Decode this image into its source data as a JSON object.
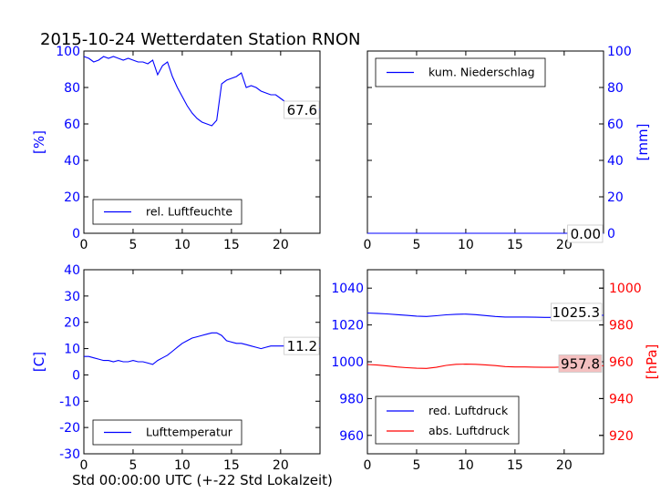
{
  "title": "2015-10-24 Wetterdaten Station RNON",
  "xlabel": "Std 00:00:00 UTC (+-22 Std Lokalzeit)",
  "colors": {
    "blue": "#0000ff",
    "red": "#ff0000",
    "axis": "#000000",
    "box_bg": "#ffffff",
    "badge_red": "#f4c0c0"
  },
  "chart_data": [
    {
      "id": "humidity",
      "type": "line",
      "xlim": [
        0,
        24
      ],
      "ylim": [
        0,
        100
      ],
      "xticks": [
        0,
        5,
        10,
        15,
        20
      ],
      "yticks": [
        0,
        20,
        40,
        60,
        80,
        100
      ],
      "ylabel": "[%]",
      "grid": false,
      "legend_position": "lower-center",
      "last_value_label": "67.6",
      "series": [
        {
          "name": "rel. Luftfeuchte",
          "color": "#0000ff",
          "x": [
            0,
            0.5,
            1,
            1.5,
            2,
            2.5,
            3,
            3.5,
            4,
            4.5,
            5,
            5.5,
            6,
            6.5,
            7,
            7.5,
            8,
            8.5,
            9,
            9.5,
            10,
            10.5,
            11,
            11.5,
            12,
            12.5,
            13,
            13.5,
            14,
            14.5,
            15,
            15.5,
            16,
            16.5,
            17,
            17.5,
            18,
            18.5,
            19,
            19.5,
            20,
            20.5,
            21,
            21.5,
            22,
            22.5,
            23,
            23.5,
            24
          ],
          "y": [
            97,
            96,
            94,
            95,
            97,
            96,
            97,
            96,
            95,
            96,
            95,
            94,
            94,
            93,
            95,
            87,
            92,
            94,
            86,
            80,
            75,
            70,
            66,
            63,
            61,
            60,
            59,
            62,
            82,
            84,
            85,
            86,
            88,
            80,
            81,
            80,
            78,
            77,
            76,
            76,
            74,
            72,
            70,
            69,
            68,
            68,
            67,
            67,
            68
          ]
        }
      ]
    },
    {
      "id": "precip",
      "type": "line",
      "xlim": [
        0,
        24
      ],
      "ylim": [
        0,
        100
      ],
      "xticks": [
        0,
        5,
        10,
        15,
        20
      ],
      "yticks": [
        0,
        20,
        40,
        60,
        80,
        100
      ],
      "ylabel": "[mm]",
      "y_axis_side": "right",
      "grid": false,
      "legend_position": "upper-left",
      "last_value_label": "0.00",
      "series": [
        {
          "name": "kum. Niederschlag",
          "color": "#0000ff",
          "x": [
            0,
            24
          ],
          "y": [
            0,
            0
          ]
        }
      ]
    },
    {
      "id": "temperature",
      "type": "line",
      "xlim": [
        0,
        24
      ],
      "ylim": [
        -30,
        40
      ],
      "xticks": [
        0,
        5,
        10,
        15,
        20
      ],
      "yticks": [
        -30,
        -20,
        -10,
        0,
        10,
        20,
        30,
        40
      ],
      "ylabel": "[C]",
      "grid": false,
      "legend_position": "lower-center",
      "last_value_label": "11.2",
      "series": [
        {
          "name": "Lufttemperatur",
          "color": "#0000ff",
          "x": [
            0,
            0.5,
            1,
            1.5,
            2,
            2.5,
            3,
            3.5,
            4,
            4.5,
            5,
            5.5,
            6,
            6.5,
            7,
            7.5,
            8,
            8.5,
            9,
            9.5,
            10,
            10.5,
            11,
            11.5,
            12,
            12.5,
            13,
            13.5,
            14,
            14.5,
            15,
            15.5,
            16,
            16.5,
            17,
            17.5,
            18,
            18.5,
            19,
            19.5,
            20,
            20.5,
            21,
            21.5,
            22,
            22.5,
            23,
            23.5,
            24
          ],
          "y": [
            7,
            7,
            6.5,
            6,
            5.5,
            5.5,
            5,
            5.5,
            5,
            5,
            5.5,
            5,
            5,
            4.5,
            4,
            5.5,
            6.5,
            7.5,
            9,
            10.5,
            12,
            13,
            14,
            14.5,
            15,
            15.5,
            16,
            16,
            15,
            13,
            12.5,
            12,
            12,
            11.5,
            11,
            10.5,
            10,
            10.5,
            11,
            11,
            11,
            11,
            11.2,
            11,
            11,
            11.2,
            11.2,
            11.2,
            11.2
          ]
        }
      ]
    },
    {
      "id": "pressure",
      "type": "line",
      "xlim": [
        0,
        24
      ],
      "ylim": [
        950,
        1050
      ],
      "xticks": [
        0,
        5,
        10,
        15,
        20
      ],
      "yticks": [
        960,
        980,
        1000,
        1020,
        1040
      ],
      "ylim_right": [
        910,
        1010
      ],
      "yticks_right": [
        920,
        940,
        960,
        980,
        1000
      ],
      "ylabel_right": "[hPa]",
      "grid": false,
      "legend_position": "lower-left",
      "value_labels": [
        "1025.3",
        "957.8"
      ],
      "series": [
        {
          "name": "red. Luftdruck",
          "color": "#0000ff",
          "axis": "left",
          "x": [
            0,
            1,
            2,
            3,
            4,
            5,
            6,
            7,
            8,
            9,
            10,
            11,
            12,
            13,
            14,
            15,
            16,
            17,
            18,
            19,
            20,
            21,
            22,
            23,
            24
          ],
          "y": [
            1026.5,
            1026.3,
            1026,
            1025.6,
            1025.2,
            1024.8,
            1024.6,
            1025,
            1025.5,
            1025.8,
            1025.9,
            1025.6,
            1025.1,
            1024.6,
            1024.3,
            1024.3,
            1024.3,
            1024.2,
            1024.1,
            1024.1,
            1024.3,
            1024.6,
            1024.9,
            1025.1,
            1025.3
          ]
        },
        {
          "name": "abs. Luftdruck",
          "color": "#ff0000",
          "axis": "right",
          "x": [
            0,
            1,
            2,
            3,
            4,
            5,
            6,
            7,
            8,
            9,
            10,
            11,
            12,
            13,
            14,
            15,
            16,
            17,
            18,
            19,
            20,
            21,
            22,
            23,
            24
          ],
          "y": [
            958.5,
            958.2,
            957.7,
            957.2,
            956.8,
            956.5,
            956.4,
            957,
            958,
            958.6,
            958.7,
            958.6,
            958.3,
            957.9,
            957.4,
            957.2,
            957.2,
            957.1,
            957,
            957,
            957.2,
            957.4,
            957.6,
            957.7,
            957.8
          ]
        }
      ]
    }
  ]
}
